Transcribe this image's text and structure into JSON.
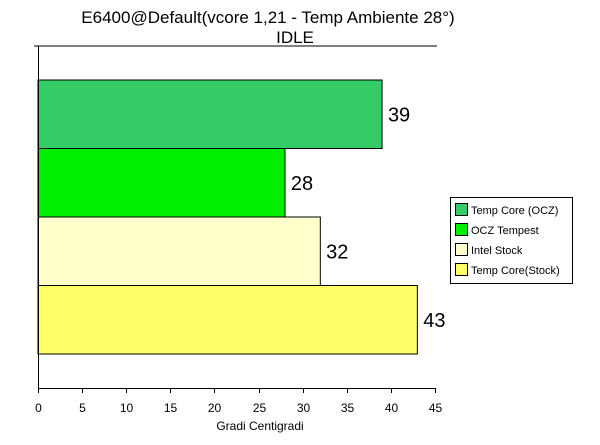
{
  "chart_data": {
    "type": "bar",
    "orientation": "horizontal",
    "title": "E6400@Default(vcore 1,21 - Temp Ambiente 28°)",
    "subtitle": "IDLE",
    "xlabel": "Gradi Centigradi",
    "ylabel": "",
    "xlim": [
      0,
      45
    ],
    "xticks": [
      0,
      5,
      10,
      15,
      20,
      25,
      30,
      35,
      40,
      45
    ],
    "grid": false,
    "legend_position": "right",
    "series": [
      {
        "name": "Temp Core (OCZ)",
        "value": 39,
        "color": "#33CC66"
      },
      {
        "name": "OCZ Tempest",
        "value": 28,
        "color": "#00EE00"
      },
      {
        "name": "Intel Stock",
        "value": 32,
        "color": "#FFFFCC"
      },
      {
        "name": "Temp Core(Stock)",
        "value": 43,
        "color": "#FFFF66"
      }
    ]
  }
}
